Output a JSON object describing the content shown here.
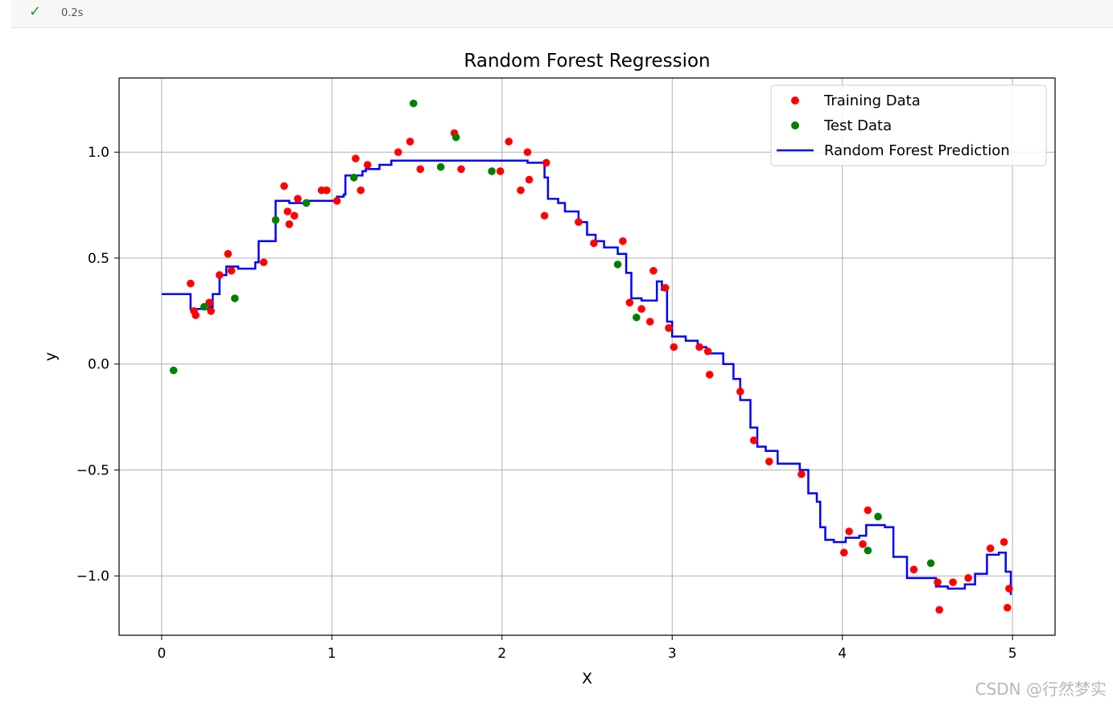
{
  "cell_status": {
    "check_icon": "check-icon",
    "elapsed": "0.2s"
  },
  "watermark": "CSDN @行然梦实",
  "chart_data": {
    "type": "scatter",
    "title": "Random Forest Regression",
    "xlabel": "X",
    "ylabel": "y",
    "xlim": [
      -0.25,
      5.25
    ],
    "ylim": [
      -1.28,
      1.35
    ],
    "xticks": [
      0,
      1,
      2,
      3,
      4,
      5
    ],
    "yticks": [
      -1.0,
      -0.5,
      0.0,
      0.5,
      1.0
    ],
    "ytick_labels": [
      "−1.0",
      "−0.5",
      "0.0",
      "0.5",
      "1.0"
    ],
    "grid": true,
    "legend_position": "top-right",
    "series": [
      {
        "name": "Training Data",
        "kind": "scatter",
        "color": "#ff0000",
        "points": [
          [
            0.17,
            0.38
          ],
          [
            0.19,
            0.25
          ],
          [
            0.2,
            0.23
          ],
          [
            0.28,
            0.29
          ],
          [
            0.29,
            0.25
          ],
          [
            0.34,
            0.42
          ],
          [
            0.39,
            0.52
          ],
          [
            0.41,
            0.44
          ],
          [
            0.6,
            0.48
          ],
          [
            0.72,
            0.84
          ],
          [
            0.74,
            0.72
          ],
          [
            0.75,
            0.66
          ],
          [
            0.78,
            0.7
          ],
          [
            0.8,
            0.78
          ],
          [
            0.94,
            0.82
          ],
          [
            0.97,
            0.82
          ],
          [
            1.03,
            0.77
          ],
          [
            1.14,
            0.97
          ],
          [
            1.17,
            0.82
          ],
          [
            1.21,
            0.94
          ],
          [
            1.39,
            1.0
          ],
          [
            1.46,
            1.05
          ],
          [
            1.52,
            0.92
          ],
          [
            1.72,
            1.09
          ],
          [
            1.76,
            0.92
          ],
          [
            1.99,
            0.91
          ],
          [
            2.04,
            1.05
          ],
          [
            2.11,
            0.82
          ],
          [
            2.15,
            1.0
          ],
          [
            2.16,
            0.87
          ],
          [
            2.25,
            0.7
          ],
          [
            2.26,
            0.95
          ],
          [
            2.45,
            0.67
          ],
          [
            2.54,
            0.57
          ],
          [
            2.71,
            0.58
          ],
          [
            2.75,
            0.29
          ],
          [
            2.82,
            0.26
          ],
          [
            2.87,
            0.2
          ],
          [
            2.89,
            0.44
          ],
          [
            2.96,
            0.36
          ],
          [
            2.98,
            0.17
          ],
          [
            3.01,
            0.08
          ],
          [
            3.16,
            0.08
          ],
          [
            3.21,
            0.06
          ],
          [
            3.22,
            -0.05
          ],
          [
            3.4,
            -0.13
          ],
          [
            3.48,
            -0.36
          ],
          [
            3.57,
            -0.46
          ],
          [
            3.76,
            -0.52
          ],
          [
            4.01,
            -0.89
          ],
          [
            4.04,
            -0.79
          ],
          [
            4.12,
            -0.85
          ],
          [
            4.15,
            -0.69
          ],
          [
            4.42,
            -0.97
          ],
          [
            4.56,
            -1.03
          ],
          [
            4.57,
            -1.16
          ],
          [
            4.65,
            -1.03
          ],
          [
            4.74,
            -1.01
          ],
          [
            4.87,
            -0.87
          ],
          [
            4.95,
            -0.84
          ],
          [
            4.97,
            -1.15
          ],
          [
            4.98,
            -1.06
          ]
        ]
      },
      {
        "name": "Test Data",
        "kind": "scatter",
        "color": "#008000",
        "points": [
          [
            0.07,
            -0.03
          ],
          [
            0.25,
            0.27
          ],
          [
            0.43,
            0.31
          ],
          [
            0.67,
            0.68
          ],
          [
            0.85,
            0.76
          ],
          [
            1.13,
            0.88
          ],
          [
            1.48,
            1.23
          ],
          [
            1.64,
            0.93
          ],
          [
            1.73,
            1.07
          ],
          [
            1.94,
            0.91
          ],
          [
            2.68,
            0.47
          ],
          [
            2.79,
            0.22
          ],
          [
            4.15,
            -0.88
          ],
          [
            4.21,
            -0.72
          ],
          [
            4.52,
            -0.94
          ]
        ]
      },
      {
        "name": "Random Forest Prediction",
        "kind": "line",
        "color": "#0000ff",
        "points": [
          [
            0.0,
            0.33
          ],
          [
            0.17,
            0.33
          ],
          [
            0.17,
            0.26
          ],
          [
            0.28,
            0.27
          ],
          [
            0.3,
            0.33
          ],
          [
            0.34,
            0.42
          ],
          [
            0.38,
            0.46
          ],
          [
            0.45,
            0.45
          ],
          [
            0.55,
            0.48
          ],
          [
            0.57,
            0.58
          ],
          [
            0.66,
            0.58
          ],
          [
            0.67,
            0.77
          ],
          [
            0.73,
            0.77
          ],
          [
            0.75,
            0.76
          ],
          [
            0.85,
            0.77
          ],
          [
            0.97,
            0.77
          ],
          [
            1.03,
            0.79
          ],
          [
            1.07,
            0.8
          ],
          [
            1.08,
            0.89
          ],
          [
            1.18,
            0.91
          ],
          [
            1.2,
            0.92
          ],
          [
            1.28,
            0.94
          ],
          [
            1.35,
            0.96
          ],
          [
            1.55,
            0.96
          ],
          [
            1.75,
            0.96
          ],
          [
            2.05,
            0.96
          ],
          [
            2.15,
            0.95
          ],
          [
            2.2,
            0.95
          ],
          [
            2.25,
            0.88
          ],
          [
            2.27,
            0.78
          ],
          [
            2.33,
            0.76
          ],
          [
            2.37,
            0.72
          ],
          [
            2.45,
            0.67
          ],
          [
            2.5,
            0.61
          ],
          [
            2.55,
            0.58
          ],
          [
            2.6,
            0.55
          ],
          [
            2.68,
            0.52
          ],
          [
            2.72,
            0.52
          ],
          [
            2.73,
            0.43
          ],
          [
            2.76,
            0.31
          ],
          [
            2.82,
            0.3
          ],
          [
            2.88,
            0.3
          ],
          [
            2.91,
            0.39
          ],
          [
            2.94,
            0.35
          ],
          [
            2.97,
            0.2
          ],
          [
            3.0,
            0.13
          ],
          [
            3.08,
            0.11
          ],
          [
            3.15,
            0.08
          ],
          [
            3.2,
            0.05
          ],
          [
            3.3,
            0.0
          ],
          [
            3.36,
            -0.07
          ],
          [
            3.4,
            -0.17
          ],
          [
            3.46,
            -0.3
          ],
          [
            3.5,
            -0.39
          ],
          [
            3.55,
            -0.41
          ],
          [
            3.62,
            -0.47
          ],
          [
            3.75,
            -0.5
          ],
          [
            3.8,
            -0.61
          ],
          [
            3.85,
            -0.65
          ],
          [
            3.87,
            -0.77
          ],
          [
            3.9,
            -0.83
          ],
          [
            3.95,
            -0.84
          ],
          [
            4.02,
            -0.82
          ],
          [
            4.1,
            -0.81
          ],
          [
            4.14,
            -0.76
          ],
          [
            4.25,
            -0.77
          ],
          [
            4.3,
            -0.91
          ],
          [
            4.38,
            -1.01
          ],
          [
            4.5,
            -1.01
          ],
          [
            4.55,
            -1.05
          ],
          [
            4.62,
            -1.06
          ],
          [
            4.72,
            -1.04
          ],
          [
            4.78,
            -0.99
          ],
          [
            4.85,
            -0.9
          ],
          [
            4.92,
            -0.89
          ],
          [
            4.96,
            -0.98
          ],
          [
            4.99,
            -1.09
          ]
        ]
      }
    ]
  }
}
